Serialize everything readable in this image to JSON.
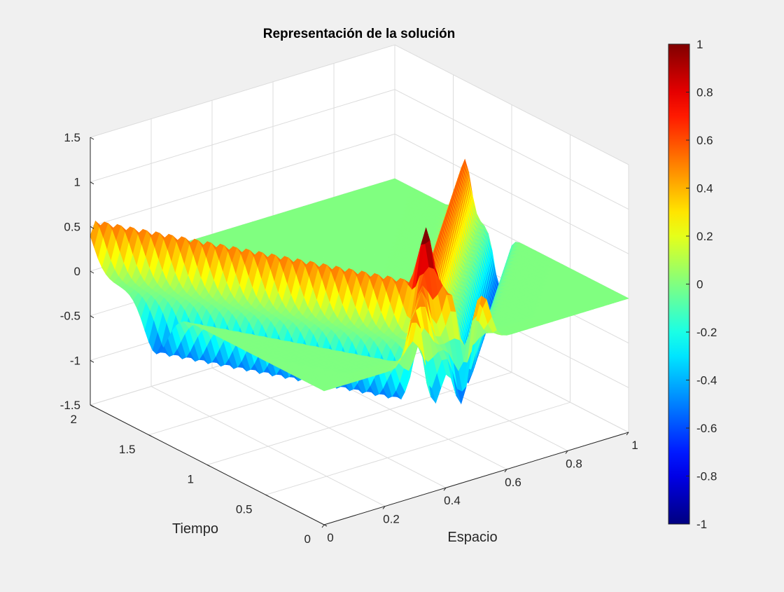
{
  "figure": {
    "background": "#f0f0f0",
    "axes_background": "#ffffff"
  },
  "chart_data": {
    "type": "surface",
    "title": "Representación de la solución",
    "xlabel": "Espacio",
    "ylabel": "Tiempo",
    "zlabel": "",
    "xlim": [
      0,
      1
    ],
    "ylim": [
      0,
      2
    ],
    "zlim": [
      -1.5,
      1.5
    ],
    "view": "3d",
    "grid": true,
    "colormap": "jet",
    "x_ticks": [
      {
        "value": 0,
        "label": "0"
      },
      {
        "value": 0.2,
        "label": "0.2"
      },
      {
        "value": 0.4,
        "label": "0.4"
      },
      {
        "value": 0.6,
        "label": "0.6"
      },
      {
        "value": 0.8,
        "label": "0.8"
      },
      {
        "value": 1,
        "label": "1"
      }
    ],
    "y_ticks": [
      {
        "value": 0,
        "label": "0"
      },
      {
        "value": 0.5,
        "label": "0.5"
      },
      {
        "value": 1,
        "label": "1"
      },
      {
        "value": 1.5,
        "label": "1.5"
      },
      {
        "value": 2,
        "label": "2"
      }
    ],
    "z_ticks": [
      {
        "value": -1.5,
        "label": "-1.5"
      },
      {
        "value": -1,
        "label": "-1"
      },
      {
        "value": -0.5,
        "label": "-0.5"
      },
      {
        "value": 0,
        "label": "0"
      },
      {
        "value": 0.5,
        "label": "0.5"
      },
      {
        "value": 1,
        "label": "1"
      },
      {
        "value": 1.5,
        "label": "1.5"
      }
    ],
    "colorbar": {
      "limits": [
        -1,
        1
      ],
      "placement": "right",
      "ticks": [
        {
          "value": 1,
          "label": "1"
        },
        {
          "value": 0.8,
          "label": "0.8"
        },
        {
          "value": 0.6,
          "label": "0.6"
        },
        {
          "value": 0.4,
          "label": "0.4"
        },
        {
          "value": 0.2,
          "label": "0.2"
        },
        {
          "value": 0,
          "label": "0"
        },
        {
          "value": -0.2,
          "label": "-0.2"
        },
        {
          "value": -0.4,
          "label": "-0.4"
        },
        {
          "value": -0.6,
          "label": "-0.6"
        },
        {
          "value": -0.8,
          "label": "-0.8"
        },
        {
          "value": -1,
          "label": "-1"
        }
      ]
    }
  }
}
